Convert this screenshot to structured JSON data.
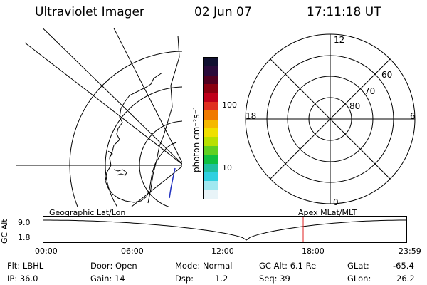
{
  "header": {
    "title": "Ultraviolet Imager",
    "date": "02 Jun 07",
    "time": "17:11:18 UT"
  },
  "colorbar": {
    "ticks": [
      "100",
      "10"
    ],
    "unit_label": "photon cm⁻²s⁻¹",
    "colors": [
      "#101030",
      "#2a0a3a",
      "#500020",
      "#8a0010",
      "#c0001a",
      "#e03020",
      "#f07a00",
      "#f5b800",
      "#f0e000",
      "#b8e000",
      "#60d020",
      "#10c040",
      "#20c0a0",
      "#30d0e0",
      "#a0e8f0",
      "#e8f4f8"
    ]
  },
  "polar_plot": {
    "mlt_labels": [
      "12",
      "18",
      "6",
      "0"
    ],
    "lat_labels": [
      "60",
      "70",
      "80"
    ]
  },
  "timeline": {
    "y_axis_label": "GC Alt",
    "y_ticks": [
      "9.0",
      "1.8"
    ],
    "left_title": "Geographic Lat/Lon",
    "right_title": "Apex MLat/MLT",
    "x_ticks": [
      "00:00",
      "06:00",
      "12:00",
      "18:00",
      "23:59"
    ],
    "current_time_hours": 17.19
  },
  "info": {
    "flt": "Flt: LBHL",
    "ip": "IP: 36.0",
    "door": "Door: Open",
    "gain": "Gain: 14",
    "mode": "Mode: Normal",
    "dsp_label": "Dsp:",
    "dsp_value": "1.2",
    "gc_alt": "GC Alt: 6.1 Re",
    "seq": "Seq: 39",
    "glat_label": "GLat:",
    "glat_value": "-65.4",
    "glon_label": "GLon:",
    "glon_value": "26.2"
  }
}
